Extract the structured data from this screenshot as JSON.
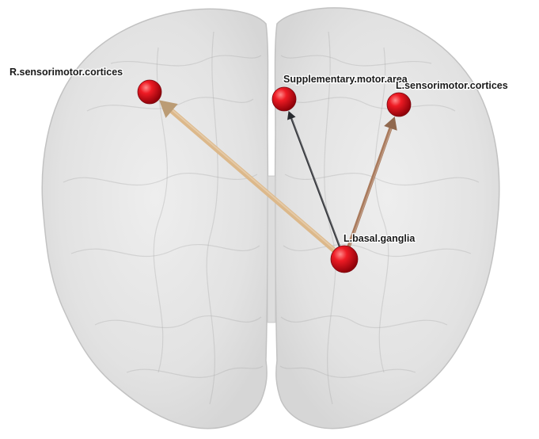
{
  "figure": {
    "background": "#ffffff",
    "brain_fill": "#e3e3e3",
    "brain_stroke": "#c2c2c2"
  },
  "nodes": [
    {
      "id": "R.sensorimotor.cortices",
      "label": "R.sensorimotor.cortices",
      "color": "#e01020"
    },
    {
      "id": "Supplementary.motor.area",
      "label": "Supplementary.motor.area",
      "color": "#e01020"
    },
    {
      "id": "L.sensorimotor.cortices",
      "label": "L.sensorimotor.cortices",
      "color": "#e01020"
    },
    {
      "id": "L.basal.ganglia",
      "label": "L.basal.ganglia",
      "color": "#e01020"
    }
  ],
  "edges": [
    {
      "from": "L.basal.ganglia",
      "to": "R.sensorimotor.cortices",
      "color": "#dcb88a",
      "weight": "strong"
    },
    {
      "from": "L.basal.ganglia",
      "to": "Supplementary.motor.area",
      "color": "#2f3136",
      "weight": "thin"
    },
    {
      "from": "L.basal.ganglia",
      "to": "L.sensorimotor.cortices",
      "color": "#a97a5c",
      "weight": "medium"
    }
  ]
}
